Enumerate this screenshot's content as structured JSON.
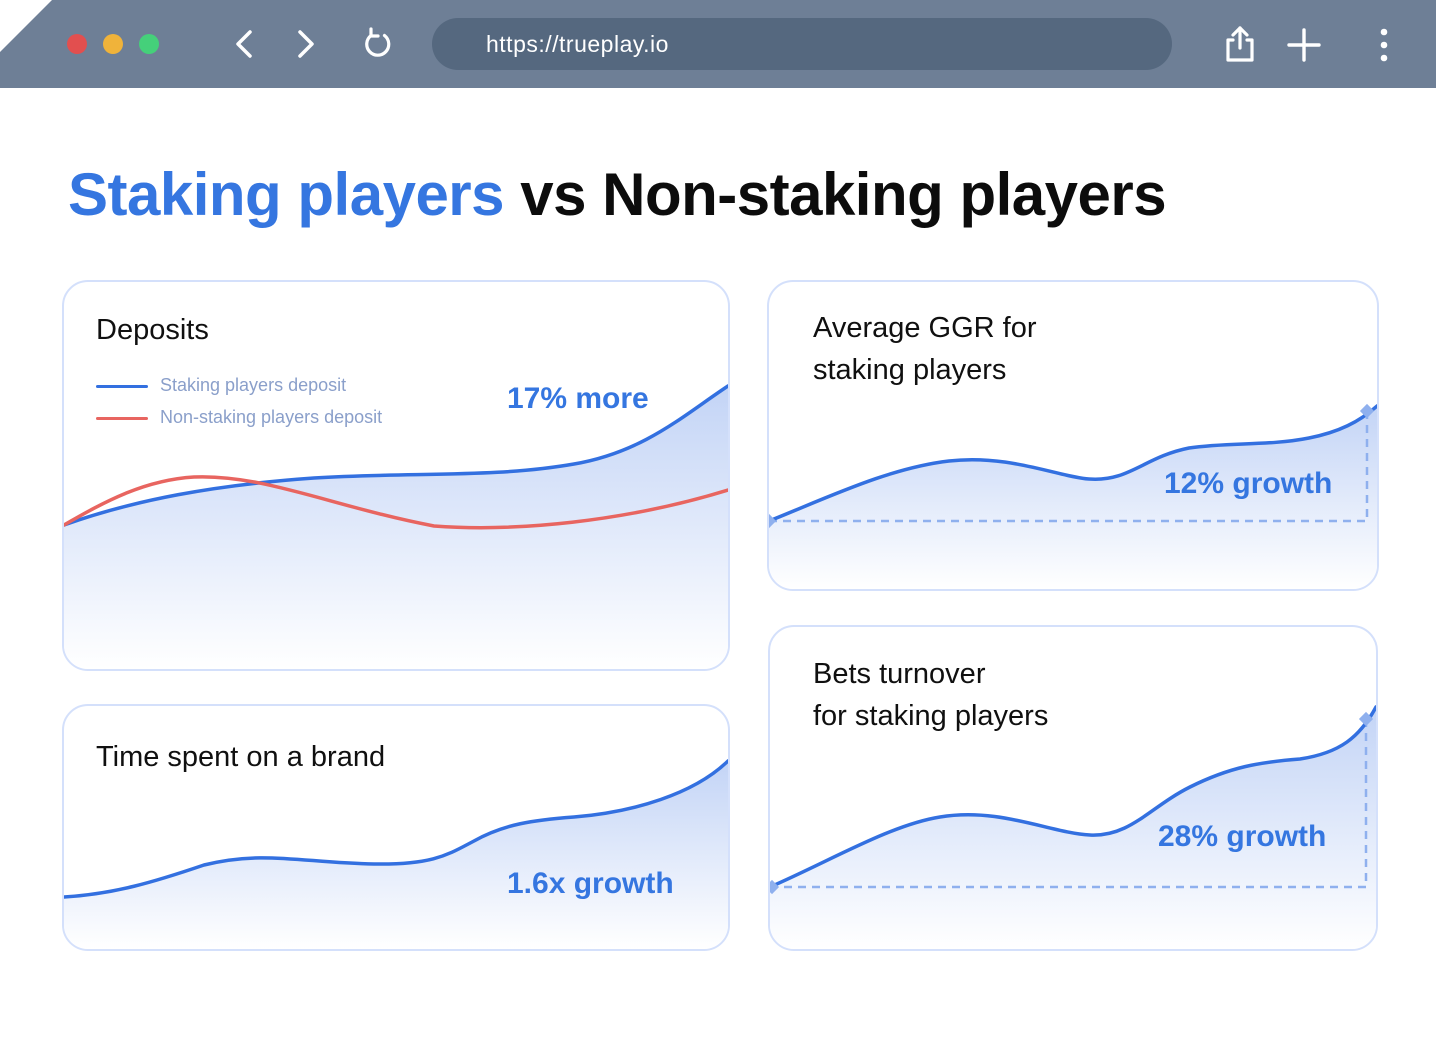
{
  "browser": {
    "url": "https://trueplay.io",
    "traffic_lights": [
      "#e24f4f",
      "#f0b33a",
      "#45d07a"
    ],
    "icons": [
      "back-icon",
      "forward-icon",
      "reload-icon",
      "share-icon",
      "new-tab-icon",
      "menu-icon"
    ]
  },
  "headline": {
    "accent_part": "Staking players",
    "rest_part": " vs Non-staking players"
  },
  "colors": {
    "accent": "#3576e0",
    "staking_line": "#3370e0",
    "non_staking_line": "#e86560",
    "card_border": "#d4e0fb"
  },
  "cards": {
    "deposits": {
      "title": "Deposits",
      "metric": "17% more",
      "legend": [
        {
          "label": "Staking players deposit",
          "color": "#3370e0"
        },
        {
          "label": "Non-staking players deposit",
          "color": "#e86560"
        }
      ]
    },
    "time_spent": {
      "title": "Time spent on a brand",
      "metric": "1.6x growth"
    },
    "avg_ggr": {
      "title_line1": "Average GGR for",
      "title_line2": "staking players",
      "metric": "12% growth"
    },
    "bets_turnover": {
      "title_line1": "Bets turnover",
      "title_line2": "for staking players",
      "metric": "28% growth"
    }
  }
}
